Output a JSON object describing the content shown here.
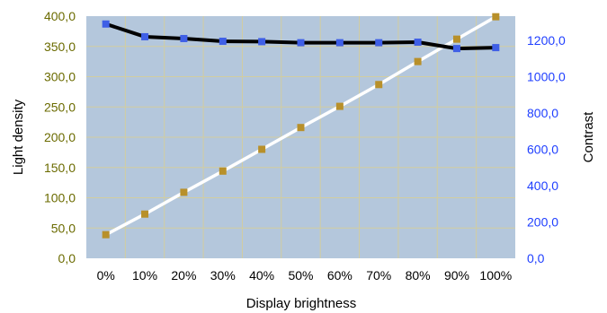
{
  "chart_data": {
    "type": "line",
    "categories": [
      "0%",
      "10%",
      "20%",
      "30%",
      "40%",
      "50%",
      "60%",
      "70%",
      "80%",
      "90%",
      "100%"
    ],
    "xlabel": "Display brightness",
    "ylabel": "Light density",
    "y2label": "Contrast",
    "ylim": [
      0,
      400
    ],
    "y2lim": [
      0,
      1333.33
    ],
    "yticks": [
      "0,0",
      "50,0",
      "100,0",
      "150,0",
      "200,0",
      "250,0",
      "300,0",
      "350,0",
      "400,0"
    ],
    "y2ticks": [
      "0,0",
      "200,0",
      "400,0",
      "600,0",
      "800,0",
      "1000,0",
      "1200,0"
    ],
    "grid": true,
    "legend": "none",
    "colors": {
      "plot_background": "#b4c7dc",
      "gridline": "#d2cda0",
      "light_density_line": "#ffffff",
      "light_density_marker": "#b8902a",
      "contrast_line": "#000000",
      "contrast_marker": "#3f5fe6",
      "left_tick_text": "#6b6b00",
      "right_tick_text": "#1f3fff"
    },
    "series": [
      {
        "axis": "left",
        "values": [
          39,
          73,
          109,
          144,
          180,
          216,
          251,
          287,
          325,
          362,
          399
        ]
      },
      {
        "axis": "right",
        "values": [
          1290,
          1220,
          1210,
          1195,
          1193,
          1187,
          1187,
          1187,
          1190,
          1155,
          1160
        ]
      }
    ]
  }
}
